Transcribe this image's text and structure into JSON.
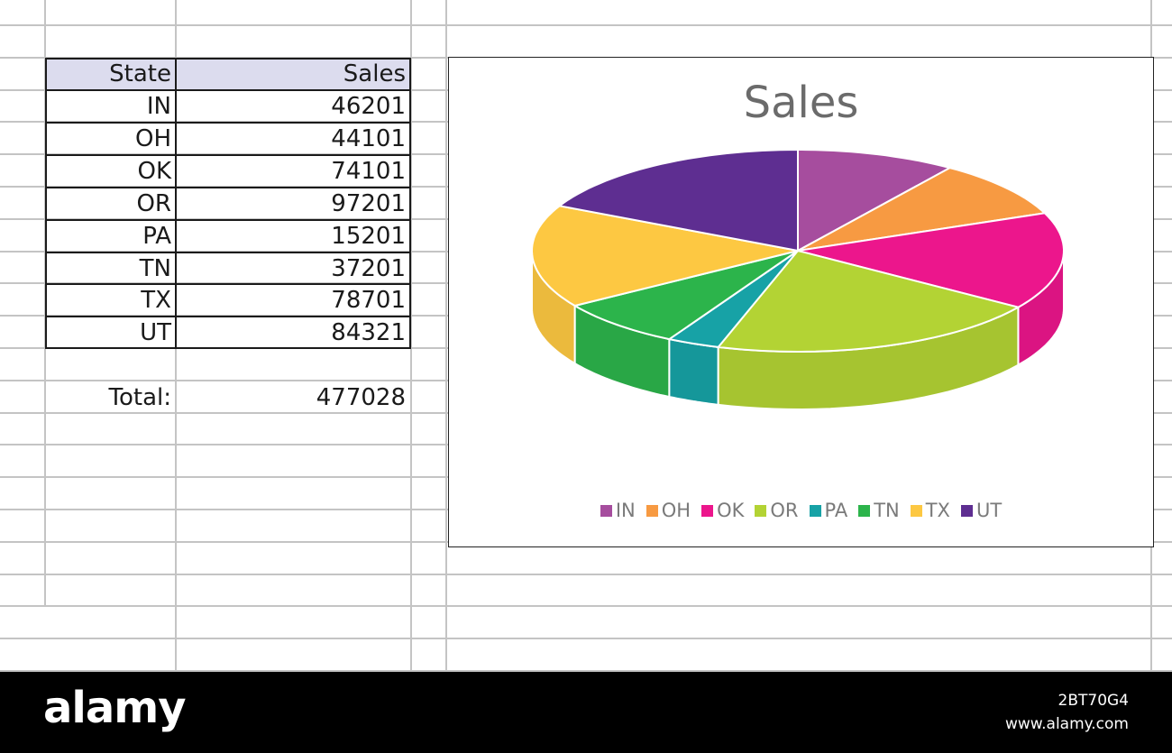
{
  "table": {
    "header": {
      "state": "State",
      "sales": "Sales"
    },
    "rows": [
      {
        "state": "IN",
        "sales": "46201"
      },
      {
        "state": "OH",
        "sales": "44101"
      },
      {
        "state": "OK",
        "sales": "74101"
      },
      {
        "state": "OR",
        "sales": "97201"
      },
      {
        "state": "PA",
        "sales": "15201"
      },
      {
        "state": "TN",
        "sales": "37201"
      },
      {
        "state": "TX",
        "sales": "78701"
      },
      {
        "state": "UT",
        "sales": "84321"
      }
    ],
    "total_label": "Total:",
    "total_value": "477028"
  },
  "chart_data": {
    "type": "pie",
    "style": "3d",
    "title": "Sales",
    "legend_position": "bottom",
    "categories": [
      "IN",
      "OH",
      "OK",
      "OR",
      "PA",
      "TN",
      "TX",
      "UT"
    ],
    "values": [
      46201,
      44101,
      74101,
      97201,
      15201,
      37201,
      78701,
      84321
    ],
    "colors": [
      "#a64d9e",
      "#f79a42",
      "#ec168c",
      "#b3d334",
      "#17a2a6",
      "#2cb44b",
      "#fdc842",
      "#5e2e91"
    ]
  },
  "footer": {
    "brand": "alamy",
    "image_id": "2BT70G4",
    "site": "www.alamy.com"
  }
}
